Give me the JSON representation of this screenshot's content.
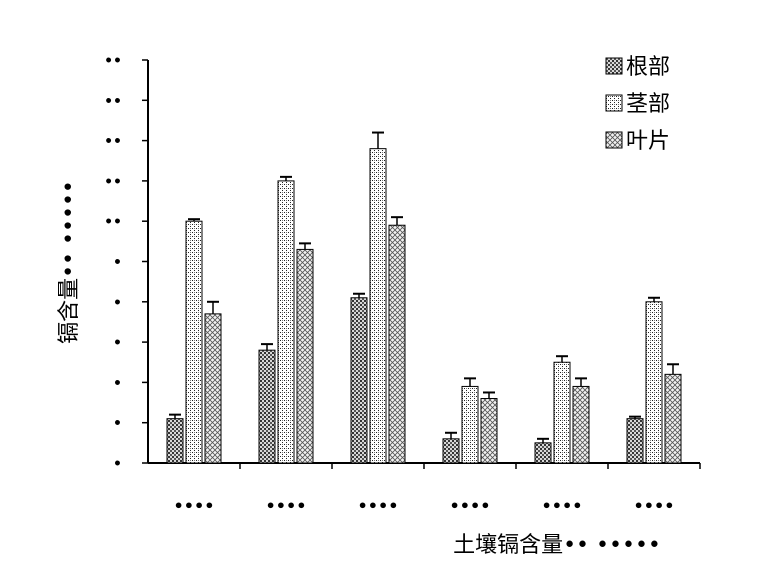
{
  "chart_data": {
    "type": "bar",
    "title": "",
    "ylabel": "镉含量•• •••••",
    "xlabel": "土壤镉含量•• •••••",
    "y_tick_labels": [
      "•",
      "•",
      "•",
      "•",
      "•",
      "•",
      "••",
      "••",
      "••",
      "••",
      "••"
    ],
    "ylim": [
      0,
      10
    ],
    "categories": [
      "••••",
      "••••",
      "••••",
      "••••",
      "••••",
      "••••"
    ],
    "legend_position": "top-right",
    "series": [
      {
        "name": "根部",
        "values": [
          1.1,
          2.8,
          4.1,
          0.6,
          0.5,
          1.1
        ],
        "errors": [
          0.1,
          0.15,
          0.1,
          0.15,
          0.1,
          0.05
        ]
      },
      {
        "name": "茎部",
        "values": [
          6.0,
          7.0,
          7.8,
          1.9,
          2.5,
          4.0
        ],
        "errors": [
          0.05,
          0.1,
          0.4,
          0.2,
          0.15,
          0.1
        ]
      },
      {
        "name": "叶片",
        "values": [
          3.7,
          5.3,
          5.9,
          1.6,
          1.9,
          2.2
        ],
        "errors": [
          0.3,
          0.15,
          0.2,
          0.15,
          0.2,
          0.25
        ]
      }
    ],
    "pattern_colors": {
      "root": "#555555",
      "stem": "#7a7a7a",
      "leaf": "#8a8a8a"
    }
  }
}
